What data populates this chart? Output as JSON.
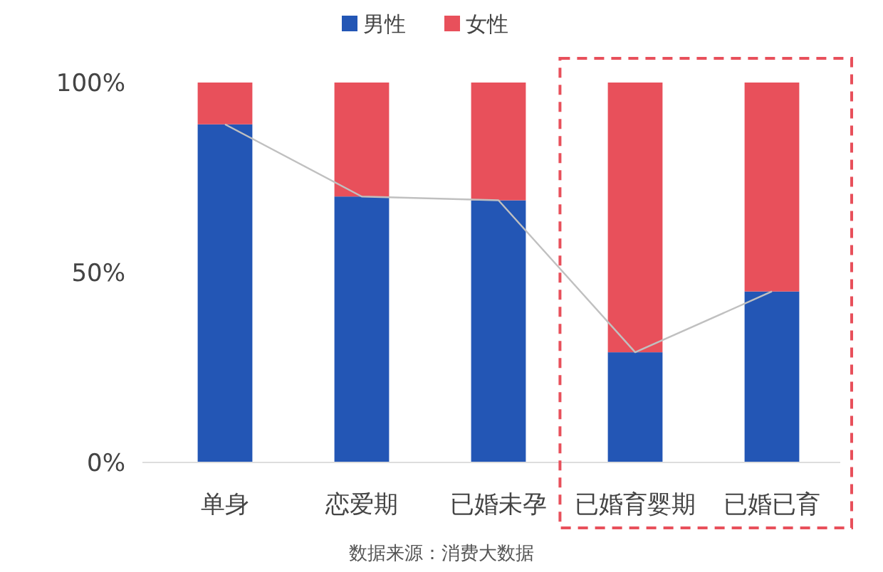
{
  "chart_data": {
    "type": "bar",
    "stacked": true,
    "legend": "top",
    "categories": [
      "单身",
      "恋爱期",
      "已婚未孕",
      "已婚育婴期",
      "已婚已育"
    ],
    "series": [
      {
        "name": "男性",
        "color": "#2356b5",
        "values": [
          89,
          70,
          69,
          29,
          45
        ]
      },
      {
        "name": "女性",
        "color": "#e8505b",
        "values": [
          11,
          30,
          31,
          71,
          55
        ]
      },
      {
        "type": "line",
        "color": "#c0c0c0",
        "values": [
          89,
          70,
          69,
          29,
          45
        ]
      }
    ],
    "ylim": [
      0,
      100
    ],
    "yticks": [
      {
        "value": 0,
        "label": "0%"
      },
      {
        "value": 50,
        "label": "50%"
      },
      {
        "value": 100,
        "label": "100%"
      }
    ],
    "annotations": [
      "数据来源：消费大数据"
    ]
  }
}
